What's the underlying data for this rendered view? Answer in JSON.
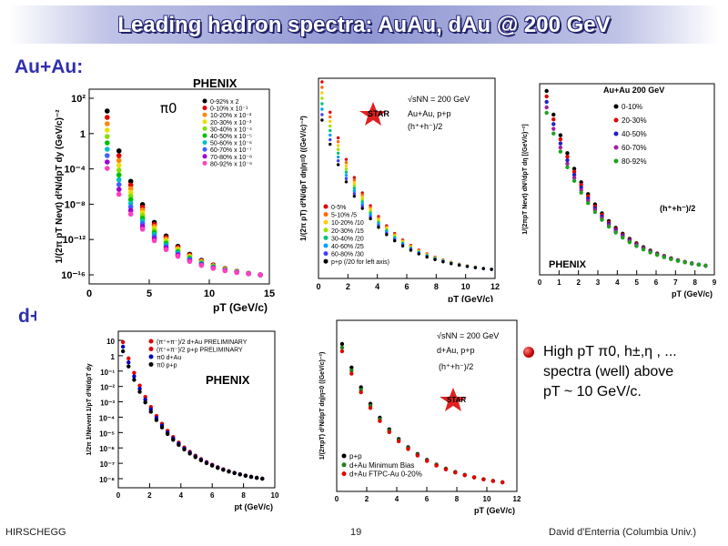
{
  "slide": {
    "title": "Leading hadron spectra: AuAu, dAu @ 200 GeV",
    "section_auau": "Au+Au:",
    "section_dau": "d+Au:",
    "bullet": {
      "line1": "High pT π0, h±,η , ...",
      "line2": "spectra (well) above",
      "line3": "pT ~ 10 GeV/c."
    },
    "footer": {
      "left": "HIRSCHEGG",
      "center": "19",
      "right": "David d'Enterria (Columbia Univ.)"
    }
  },
  "colors": {
    "title_text": "#ffffff",
    "section_text": "#3030b0",
    "bullet": "#c00000"
  },
  "chart_data": [
    {
      "type": "scatter",
      "id": "phenix-auau-pi0",
      "logo": "PHENIX",
      "ylabel": "1/(2π pT Nevt) d²N/dpT dy (GeV/c)⁻²",
      "xlabel": "pT (GeV/c)",
      "xlim": [
        0,
        15
      ],
      "ylim_log10": [
        -17,
        3
      ],
      "particle": "π0",
      "x_ticks": [
        "0",
        "5",
        "10",
        "15"
      ],
      "y_ticks": [
        "10²",
        "1",
        "10⁻⁴",
        "10⁻⁸",
        "10⁻¹²",
        "10⁻¹⁶"
      ],
      "legend": [
        "0-92% x 2",
        "0-10% x 10⁻¹",
        "10-20% x 10⁻²",
        "20-30% x 10⁻³",
        "30-40% x 10⁻⁴",
        "40-50% x 10⁻⁵",
        "50-60% x 10⁻⁶",
        "60-70% x 10⁻⁷",
        "70-80% x 10⁻⁸",
        "80-92% x 10⁻⁹"
      ],
      "series_colors": [
        "#000000",
        "#e00000",
        "#ff8800",
        "#e8e000",
        "#80e000",
        "#00c000",
        "#00c0c0",
        "#4060ff",
        "#a000d0",
        "#ff40c0"
      ]
    },
    {
      "type": "scatter",
      "id": "star-auau-charged",
      "logo": "STAR",
      "header": "√sNN = 200 GeV",
      "subheader1": "Au+Au, p+p",
      "subheader2": "(h⁺+h⁻)/2",
      "ylabel": "1/(2π pT) d²N/dpT dη|η=0 ((GeV/c)⁻²)",
      "xlabel": "pT (GeV/c)",
      "xlim": [
        0,
        12
      ],
      "ylim_log10": [
        -11,
        3
      ],
      "x_ticks": [
        "0",
        "2",
        "4",
        "6",
        "8",
        "10",
        "12"
      ],
      "legend": [
        "0-5%",
        "5-10% /5",
        "10-20% /10",
        "20-30% /15",
        "30-40% /20",
        "40-60% /25",
        "60-80% /30",
        "p+p (/20 for left axis)"
      ],
      "series_colors": [
        "#e00000",
        "#ff6600",
        "#ffcc00",
        "#a0e000",
        "#00c080",
        "#00a0ff",
        "#4040ff",
        "#000000"
      ]
    },
    {
      "type": "scatter",
      "id": "phenix-auau-h",
      "logo": "PHENIX",
      "header": "Au+Au 200 GeV",
      "ylabel": "1/(2πpT Nevt) dN²/dpT dη [(GeV/c)⁻²]",
      "xlabel": "pT (GeV/c)",
      "xlim": [
        0,
        9
      ],
      "ylim_log10": [
        -8,
        2
      ],
      "particle": "(h⁺+h⁻)/2",
      "x_ticks": [
        "0",
        "1",
        "2",
        "3",
        "4",
        "5",
        "6",
        "7",
        "8",
        "9"
      ],
      "legend": [
        "0-10%",
        "20-30%",
        "40-50%",
        "60-70%",
        "80-92%"
      ],
      "series_colors": [
        "#000000",
        "#e00000",
        "#2020c0",
        "#a020a0",
        "#20a020"
      ]
    },
    {
      "type": "scatter",
      "id": "phenix-dau",
      "logo": "PHENIX",
      "ylabel": "1/2π 1/Nevent 1/pT d²N/dpT dy",
      "xlabel": "pt (GeV/c)",
      "xlim": [
        0,
        10
      ],
      "ylim_log10": [
        -8,
        1
      ],
      "x_ticks": [
        "0",
        "2",
        "4",
        "6",
        "8",
        "10"
      ],
      "y_ticks": [
        "10",
        "1",
        "10⁻¹",
        "10⁻²",
        "10⁻³",
        "10⁻⁴",
        "10⁻⁵",
        "10⁻⁶",
        "10⁻⁷",
        "10⁻⁸"
      ],
      "legend": [
        "(π⁺+π⁻)/2 d+Au PRELIMINARY",
        "(π⁺+π⁻)/2 p+p PRELIMINARY",
        "π0 d+Au",
        "π0 p+p"
      ],
      "series_colors": [
        "#e00000",
        "#e00000",
        "#0000c0",
        "#000000"
      ]
    },
    {
      "type": "scatter",
      "id": "star-dau",
      "logo": "STAR",
      "header": "√sNN = 200 GeV",
      "subheader1": "d+Au, p+p",
      "subheader2": "(h⁺+h⁻)/2",
      "ylabel": "1/(2πpT) d²N/dpT dη|η=0 ((GeV/c)⁻²)",
      "xlabel": "pT (GeV/c)",
      "xlim": [
        0,
        12
      ],
      "ylim_log10": [
        -9,
        2
      ],
      "x_ticks": [
        "0",
        "2",
        "4",
        "6",
        "8",
        "10",
        "12"
      ],
      "legend": [
        "p+p",
        "d+Au Minimum Bias",
        "d+Au FTPC-Au 0-20%"
      ],
      "series_colors": [
        "#000000",
        "#208020",
        "#e00000"
      ]
    }
  ]
}
